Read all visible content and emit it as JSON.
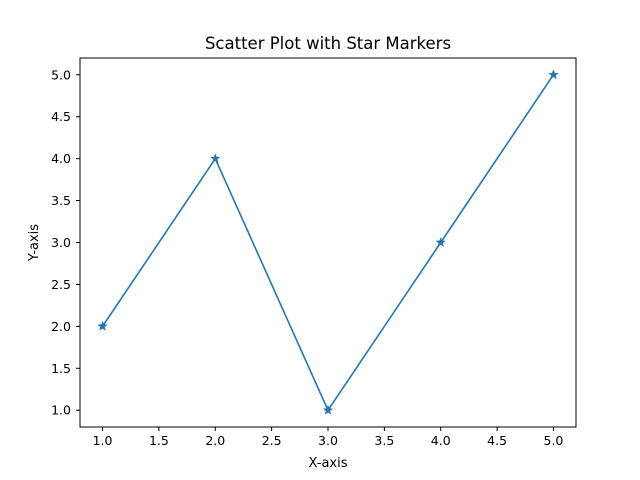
{
  "chart_data": {
    "type": "line",
    "title": "Scatter Plot with Star Markers",
    "xlabel": "X-axis",
    "ylabel": "Y-axis",
    "xlim": [
      0.8,
      5.2
    ],
    "ylim": [
      0.8,
      5.2
    ],
    "x_ticks": [
      "1.0",
      "1.5",
      "2.0",
      "2.5",
      "3.0",
      "3.5",
      "4.0",
      "4.5",
      "5.0"
    ],
    "y_ticks": [
      "1.0",
      "1.5",
      "2.0",
      "2.5",
      "3.0",
      "3.5",
      "4.0",
      "4.5",
      "5.0"
    ],
    "grid": false,
    "marker": "star",
    "series": [
      {
        "x": [
          1,
          2,
          3,
          4,
          5
        ],
        "y": [
          2,
          4,
          1,
          3,
          5
        ],
        "color": "#1f77b4"
      }
    ]
  }
}
